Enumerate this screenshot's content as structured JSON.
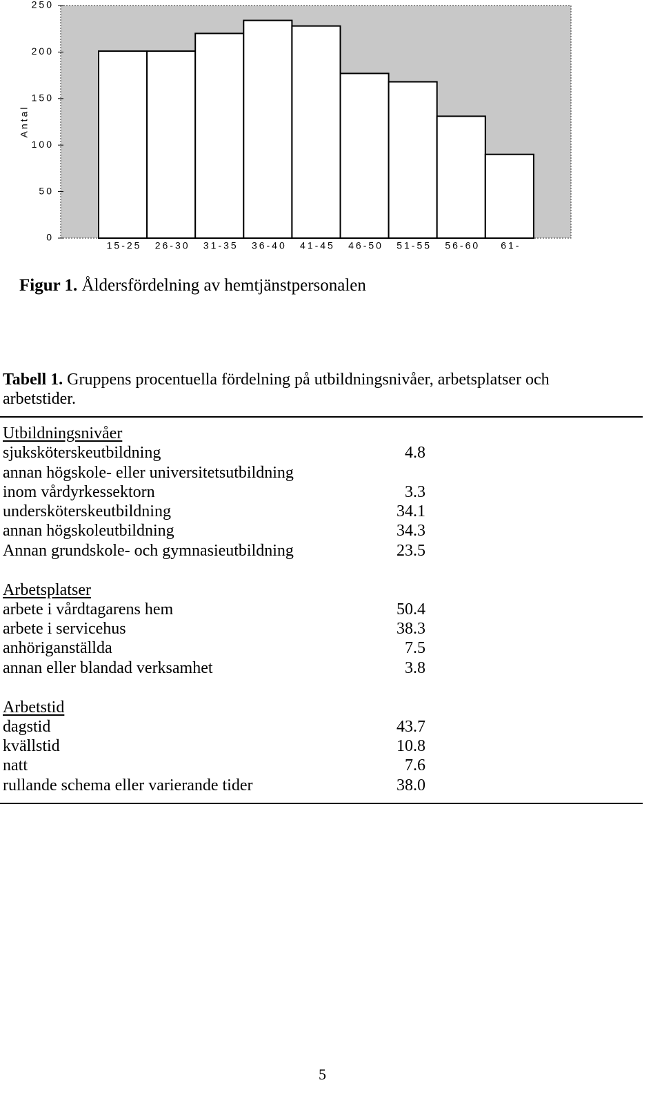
{
  "chart_data": {
    "type": "bar",
    "ylabel": "Antal",
    "categories": [
      "15-25",
      "26-30",
      "31-35",
      "36-40",
      "41-45",
      "46-50",
      "51-55",
      "56-60",
      "61-"
    ],
    "values": [
      201,
      201,
      220,
      234,
      228,
      177,
      168,
      131,
      90
    ],
    "color": "#ffffff",
    "ylim": [
      0,
      250
    ],
    "yticks": [
      0,
      50,
      100,
      150,
      200,
      250
    ],
    "grid": false
  },
  "figure": {
    "label": "Figur 1.",
    "caption": "Åldersfördelning av hemtjänstpersonalen"
  },
  "table": {
    "label": "Tabell 1.",
    "caption": "Gruppens procentuella fördelning  på utbildningsnivåer, arbetsplatser och arbetstider.",
    "sections": [
      {
        "heading": "Utbildningsnivåer",
        "rows": [
          {
            "label": "sjuksköterskeutbildning",
            "value": "4.8"
          },
          {
            "label": "annan högskole- eller universitetsutbildning"
          },
          {
            "label": "inom vårdyrkessektorn",
            "value": "3.3"
          },
          {
            "label": "undersköterskeutbildning",
            "value": "34.1"
          },
          {
            "label": "annan högskoleutbildning",
            "value": "34.3"
          },
          {
            "label": "Annan grundskole- och gymnasieutbildning",
            "value": "23.5"
          }
        ]
      },
      {
        "heading": "Arbetsplatser",
        "rows": [
          {
            "label": "arbete i vårdtagarens hem",
            "value": "50.4"
          },
          {
            "label": "arbete i servicehus",
            "value": "38.3"
          },
          {
            "label": "anhöriganställda",
            "value": "7.5"
          },
          {
            "label": "annan eller blandad verksamhet",
            "value": "3.8"
          }
        ]
      },
      {
        "heading": "Arbetstid",
        "rows": [
          {
            "label": "dagstid",
            "value": "43.7"
          },
          {
            "label": "kvällstid",
            "value": "10.8"
          },
          {
            "label": "natt",
            "value": "7.6"
          },
          {
            "label": "rullande schema eller varierande tider",
            "value": "38.0"
          }
        ]
      }
    ]
  },
  "page_number": "5"
}
